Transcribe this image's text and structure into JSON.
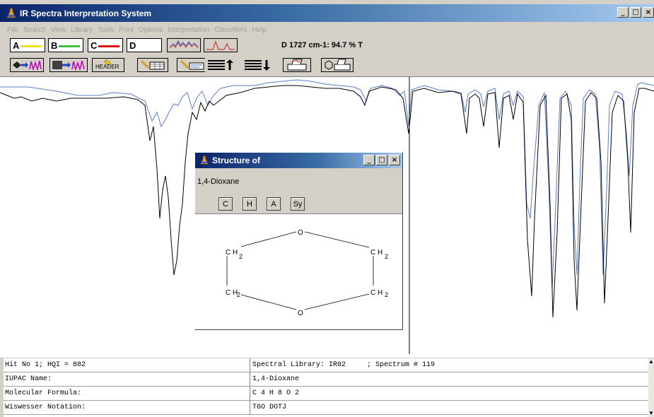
{
  "window": {
    "title": "IR Spectra Interpretation System",
    "min": "_",
    "max": "□",
    "close": "×"
  },
  "menu": [
    "File",
    "Search",
    "View",
    "Library",
    "Tools",
    "Print",
    "Options",
    "Interpretation",
    "Classifiers",
    "Help"
  ],
  "toolbar1": {
    "slots": [
      {
        "label": "A",
        "color": "#f0e020"
      },
      {
        "label": "B",
        "color": "#40c040"
      },
      {
        "label": "C",
        "color": "#e01010"
      },
      {
        "label": "D",
        "color": ""
      }
    ],
    "readout": "D  1727 cm-1: 94.7 % T"
  },
  "toolbar2": {
    "header_label": "HEADER"
  },
  "structure_dialog": {
    "title": "Structure of",
    "compound": "1,4-Dioxane",
    "atom_buttons": [
      "C",
      "H",
      "A",
      "Sy"
    ],
    "atoms": {
      "o": "O",
      "ch": "C H",
      "sub": "2"
    }
  },
  "info": {
    "rows": [
      {
        "label": "Hit No 1; HQI = 882",
        "value": "Spectral Library: IR02     ; Spectrum # 119"
      },
      {
        "label": "IUPAC Name:",
        "value": "1,4-Dioxane"
      },
      {
        "label": "Molecular Formula:",
        "value": "C 4 H 8 O 2"
      },
      {
        "label": "Wiswesser Notation:",
        "value": "T6O DOTJ"
      }
    ]
  },
  "colors": {
    "spectrum_a": "#000000",
    "spectrum_b": "#5a7cc8",
    "cursor": "#000000"
  }
}
